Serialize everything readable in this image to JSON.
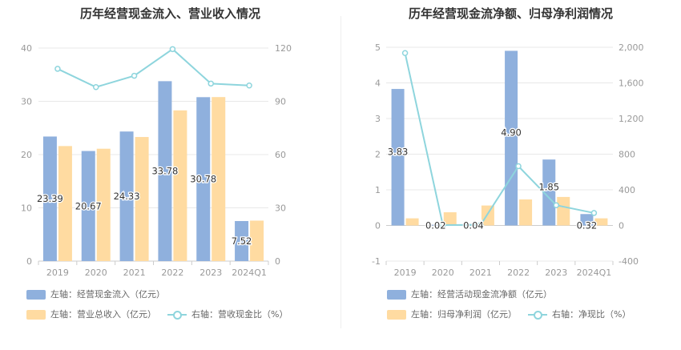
{
  "colors": {
    "blue": "#8fb0dd",
    "orange": "#ffdba1",
    "line": "#8ed5dd",
    "grid": "#e8e8e8"
  },
  "chart_data": [
    {
      "type": "bar",
      "title": "历年经营现金流入、营业收入情况",
      "categories": [
        "2019",
        "2020",
        "2021",
        "2022",
        "2023",
        "2024Q1"
      ],
      "y_left": {
        "range": [
          0,
          40
        ],
        "ticks": [
          "0",
          "10",
          "20",
          "30",
          "40"
        ]
      },
      "y_right": {
        "range": [
          0,
          120
        ],
        "ticks": [
          "0",
          "30",
          "60",
          "90",
          "120"
        ]
      },
      "series": [
        {
          "name": "左轴：经营现金流入（亿元）",
          "axis": "left",
          "kind": "bar",
          "values": [
            23.39,
            20.67,
            24.33,
            33.78,
            30.78,
            7.52
          ],
          "labels": [
            "23.39",
            "20.67",
            "24.33",
            "33.78",
            "30.78",
            "7.52"
          ]
        },
        {
          "name": "左轴：营业总收入（亿元）",
          "axis": "left",
          "kind": "bar",
          "values": [
            21.6,
            21.1,
            23.3,
            28.3,
            30.8,
            7.6
          ]
        },
        {
          "name": "右轴：营收现金比（%）",
          "axis": "right",
          "kind": "line",
          "values": [
            108.3,
            98.0,
            104.4,
            119.4,
            100.0,
            98.9
          ]
        }
      ],
      "grid": true,
      "legend_position": "bottom"
    },
    {
      "type": "bar",
      "title": "历年经营现金流净额、归母净利润情况",
      "categories": [
        "2019",
        "2020",
        "2021",
        "2022",
        "2023",
        "2024Q1"
      ],
      "y_left": {
        "range": [
          -1,
          5
        ],
        "ticks": [
          "-1",
          "0",
          "1",
          "2",
          "3",
          "4",
          "5"
        ]
      },
      "y_right": {
        "range": [
          -400,
          2000
        ],
        "ticks": [
          "-400",
          "0",
          "400",
          "800",
          "1,200",
          "1,600",
          "2,000"
        ]
      },
      "series": [
        {
          "name": "左轴：经营活动现金流净额（亿元）",
          "axis": "left",
          "kind": "bar",
          "values": [
            3.83,
            0.02,
            0.04,
            4.9,
            1.85,
            0.32
          ],
          "labels": [
            "3.83",
            "0.02",
            "0.04",
            "4.90",
            "1.85",
            "0.32"
          ]
        },
        {
          "name": "左轴：归母净利润（亿元）",
          "axis": "left",
          "kind": "bar",
          "values": [
            0.2,
            0.37,
            0.56,
            0.73,
            0.8,
            0.2
          ]
        },
        {
          "name": "右轴：净现比（%）",
          "axis": "right",
          "kind": "line",
          "values": [
            1935,
            5,
            7,
            665,
            227,
            140
          ]
        }
      ],
      "grid": true,
      "legend_position": "bottom"
    }
  ]
}
